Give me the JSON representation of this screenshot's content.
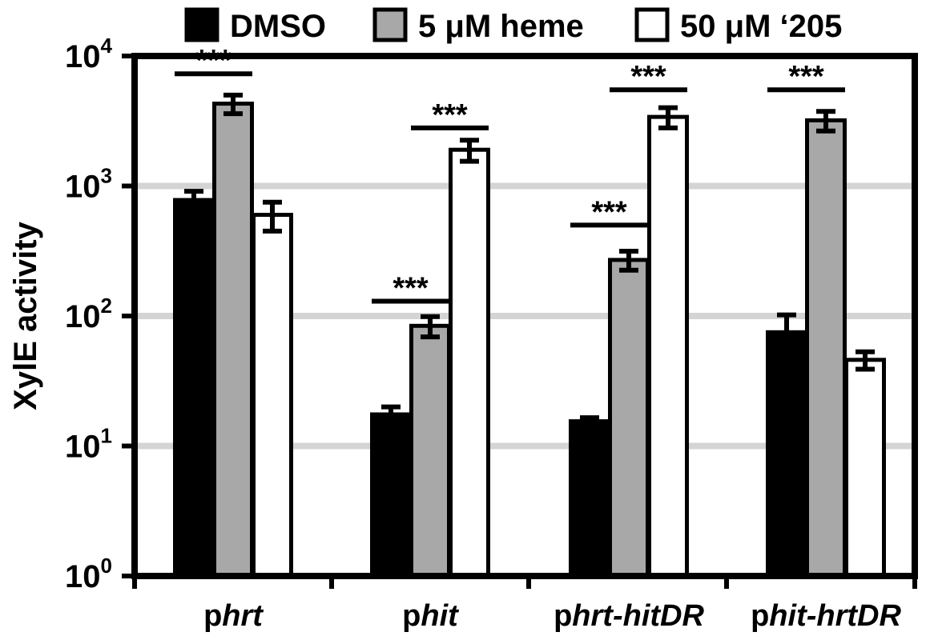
{
  "chart_data": {
    "type": "bar",
    "yscale": "log",
    "ylim": [
      1,
      10000
    ],
    "ylabel": "XylE activity",
    "xlabel": "",
    "grid": "horizontal",
    "legend": "top",
    "y_ticks": [
      {
        "value": 1,
        "base": "10",
        "exp": "0"
      },
      {
        "value": 10,
        "base": "10",
        "exp": "1"
      },
      {
        "value": 100,
        "base": "10",
        "exp": "2"
      },
      {
        "value": 1000,
        "base": "10",
        "exp": "3"
      },
      {
        "value": 10000,
        "base": "10",
        "exp": "4"
      }
    ],
    "categories": [
      {
        "prefix": "p",
        "italic": "hrt"
      },
      {
        "prefix": "p",
        "italic": "hit"
      },
      {
        "prefix": "p",
        "italic": "hrt-hitDR"
      },
      {
        "prefix": "p",
        "italic": "hit-hrtDR"
      }
    ],
    "series": [
      {
        "name": "DMSO",
        "fill": "#000000",
        "values": [
          780,
          17.5,
          15.5,
          75
        ],
        "errors": [
          130,
          2.5,
          1,
          27
        ]
      },
      {
        "name": "5 μM heme",
        "fill": "#a8a8a8",
        "values": [
          4300,
          84,
          270,
          3200
        ],
        "errors": [
          700,
          15,
          45,
          550
        ]
      },
      {
        "name": "50 μM ‘205",
        "fill": "#ffffff",
        "values": [
          600,
          1900,
          3400,
          46
        ],
        "errors": [
          150,
          350,
          600,
          7
        ]
      }
    ],
    "significance": [
      {
        "category": 0,
        "from": 0,
        "to": 1,
        "y": 7300,
        "label": "***"
      },
      {
        "category": 1,
        "from": 0,
        "to": 1,
        "y": 130,
        "label": "***"
      },
      {
        "category": 1,
        "from": 1,
        "to": 2,
        "y": 2800,
        "label": "***"
      },
      {
        "category": 2,
        "from": 0,
        "to": 1,
        "y": 500,
        "label": "***"
      },
      {
        "category": 2,
        "from": 1,
        "to": 2,
        "y": 5500,
        "label": "***"
      },
      {
        "category": 3,
        "from": 0,
        "to": 1,
        "y": 5500,
        "label": "***"
      }
    ]
  },
  "colors": {
    "axis": "#000000",
    "grid": "#d4d4d4"
  }
}
